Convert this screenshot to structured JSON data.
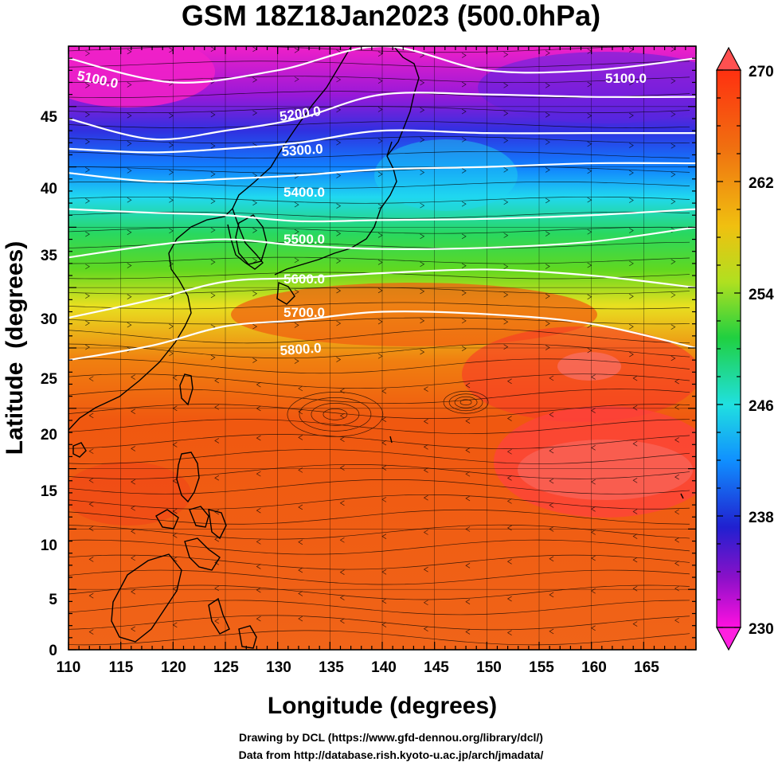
{
  "title": "GSM 18Z18Jan2023 (500.0hPa)",
  "axes": {
    "xlabel": "Longitude (degrees)",
    "ylabel": "Latitude  (degrees)",
    "xticks": [
      "110",
      "115",
      "120",
      "125",
      "130",
      "135",
      "140",
      "145",
      "150",
      "155",
      "160",
      "165"
    ],
    "yticks": [
      "0",
      "5",
      "10",
      "15",
      "20",
      "25",
      "30",
      "35",
      "40",
      "45"
    ]
  },
  "colorbar": {
    "labels": [
      "270",
      "262",
      "254",
      "246",
      "238",
      "230"
    ]
  },
  "contours": {
    "labels": [
      "5100.0",
      "5100.0",
      "5200.0",
      "5300.0",
      "5400.0",
      "5500.0",
      "5600.0",
      "5700.0",
      "5800.0"
    ]
  },
  "credits": {
    "line1": "Drawing by DCL (https://www.gfd-dennou.org/library/dcl/)",
    "line2": "Data from http://database.rish.kyoto-u.ac.jp/arch/jmadata/"
  },
  "chart_data": {
    "type": "heatmap",
    "title": "GSM 18Z18Jan2023 (500.0hPa)",
    "xlabel": "Longitude (degrees)",
    "ylabel": "Latitude  (degrees)",
    "xlim": [
      110,
      170
    ],
    "ylim": [
      0,
      50
    ],
    "colorbar_range": [
      230,
      270
    ],
    "colorbar_ticks": [
      270,
      262,
      254,
      246,
      238,
      230
    ],
    "temperature_bands": [
      {
        "lat": 48,
        "lon_west": 231,
        "lon_mid": 240,
        "lon_east": 236
      },
      {
        "lat": 44,
        "lon_west": 237,
        "lon_mid": 240,
        "lon_east": 239
      },
      {
        "lat": 40,
        "lon_west": 244,
        "lon_mid": 244,
        "lon_east": 243
      },
      {
        "lat": 36,
        "lon_west": 249,
        "lon_mid": 250,
        "lon_east": 250
      },
      {
        "lat": 32,
        "lon_west": 254,
        "lon_mid": 262,
        "lon_east": 258
      },
      {
        "lat": 28,
        "lon_west": 258,
        "lon_mid": 266,
        "lon_east": 262
      },
      {
        "lat": 24,
        "lon_west": 263,
        "lon_mid": 267,
        "lon_east": 268
      },
      {
        "lat": 18,
        "lon_west": 266,
        "lon_mid": 267,
        "lon_east": 270
      },
      {
        "lat": 10,
        "lon_west": 267,
        "lon_mid": 268,
        "lon_east": 267
      },
      {
        "lat": 2,
        "lon_west": 266,
        "lon_mid": 266,
        "lon_east": 266
      }
    ],
    "height_contours": [
      {
        "value": 5100.0,
        "points": [
          [
            110,
            49
          ],
          [
            120,
            47
          ],
          [
            130,
            48
          ],
          [
            140,
            50
          ],
          [
            150,
            48
          ],
          [
            160,
            48
          ],
          [
            170,
            49
          ]
        ]
      },
      {
        "value": 5200.0,
        "points": [
          [
            110,
            44
          ],
          [
            118,
            42.3
          ],
          [
            125,
            43
          ],
          [
            132,
            44
          ],
          [
            140,
            46
          ],
          [
            150,
            46
          ],
          [
            160,
            45.8
          ],
          [
            170,
            45.8
          ]
        ]
      },
      {
        "value": 5300.0,
        "points": [
          [
            110,
            41.5
          ],
          [
            118,
            41.2
          ],
          [
            125,
            41.5
          ],
          [
            132,
            42
          ],
          [
            140,
            43
          ],
          [
            150,
            42.8
          ],
          [
            160,
            42.8
          ],
          [
            170,
            42.8
          ]
        ]
      },
      {
        "value": 5400.0,
        "points": [
          [
            110,
            39.5
          ],
          [
            118,
            38.8
          ],
          [
            125,
            39
          ],
          [
            132,
            39.3
          ],
          [
            140,
            39.8
          ],
          [
            150,
            40
          ],
          [
            160,
            40.3
          ],
          [
            170,
            40.3
          ]
        ]
      },
      {
        "value": 5500.0,
        "points": [
          [
            110,
            36.5
          ],
          [
            118,
            36.2
          ],
          [
            125,
            36
          ],
          [
            132,
            35.5
          ],
          [
            140,
            35.6
          ],
          [
            150,
            35.7
          ],
          [
            160,
            36
          ],
          [
            170,
            36.5
          ]
        ]
      },
      {
        "value": 5600.0,
        "points": [
          [
            110,
            32.5
          ],
          [
            118,
            33.5
          ],
          [
            125,
            34
          ],
          [
            132,
            33.5
          ],
          [
            140,
            33.2
          ],
          [
            150,
            33.3
          ],
          [
            160,
            33.8
          ],
          [
            170,
            35
          ]
        ]
      },
      {
        "value": 5700.0,
        "points": [
          [
            110,
            27.5
          ],
          [
            118,
            29
          ],
          [
            125,
            30.5
          ],
          [
            132,
            30.8
          ],
          [
            140,
            31.2
          ],
          [
            150,
            31.5
          ],
          [
            160,
            31
          ],
          [
            170,
            30
          ]
        ]
      },
      {
        "value": 5800.0,
        "points": [
          [
            110,
            24
          ],
          [
            118,
            25.2
          ],
          [
            125,
            26.8
          ],
          [
            132,
            27.3
          ],
          [
            140,
            28
          ],
          [
            150,
            27.8
          ],
          [
            160,
            27
          ],
          [
            170,
            25
          ]
        ]
      }
    ]
  }
}
